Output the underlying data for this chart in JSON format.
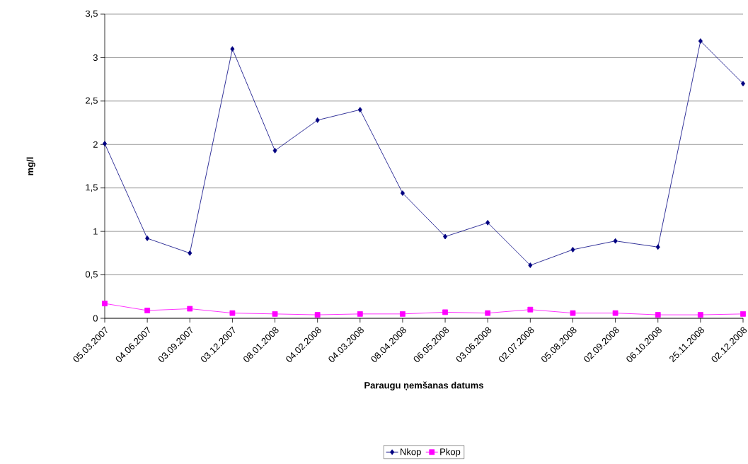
{
  "chart_data": {
    "type": "line",
    "categories": [
      "05.03.2007",
      "04.06.2007",
      "03.09.2007",
      "03.12.2007",
      "08.01.2008",
      "04.02.2008",
      "04.03.2008",
      "08.04.2008",
      "06.05.2008",
      "03.06.2008",
      "02.07.2008",
      "05.08.2008",
      "02.09.2008",
      "06.10.2008",
      "25.11.2008",
      "02.12.2008"
    ],
    "series": [
      {
        "name": "Nkop",
        "color": "#000080",
        "marker": "diamond",
        "values": [
          2.01,
          0.92,
          0.75,
          3.1,
          1.93,
          2.28,
          2.4,
          1.44,
          0.94,
          1.1,
          0.61,
          0.79,
          0.89,
          0.82,
          3.19,
          2.7
        ]
      },
      {
        "name": "Pkop",
        "color": "#ff00ff",
        "marker": "square",
        "values": [
          0.17,
          0.09,
          0.11,
          0.06,
          0.05,
          0.04,
          0.05,
          0.05,
          0.07,
          0.06,
          0.1,
          0.06,
          0.06,
          0.04,
          0.04,
          0.05
        ]
      }
    ],
    "xlabel": "Paraugu ņemšanas datums",
    "ylabel": "mg/l",
    "ylim": [
      0,
      3.5
    ],
    "yticks": [
      0,
      {
        "value": 0.5,
        "label": "0,5"
      },
      1,
      {
        "value": 1.5,
        "label": "1,5"
      },
      2,
      {
        "value": 2.5,
        "label": "2,5"
      },
      3,
      {
        "value": 3.5,
        "label": "3,5"
      }
    ],
    "grid": "y",
    "legend": "bottom"
  }
}
